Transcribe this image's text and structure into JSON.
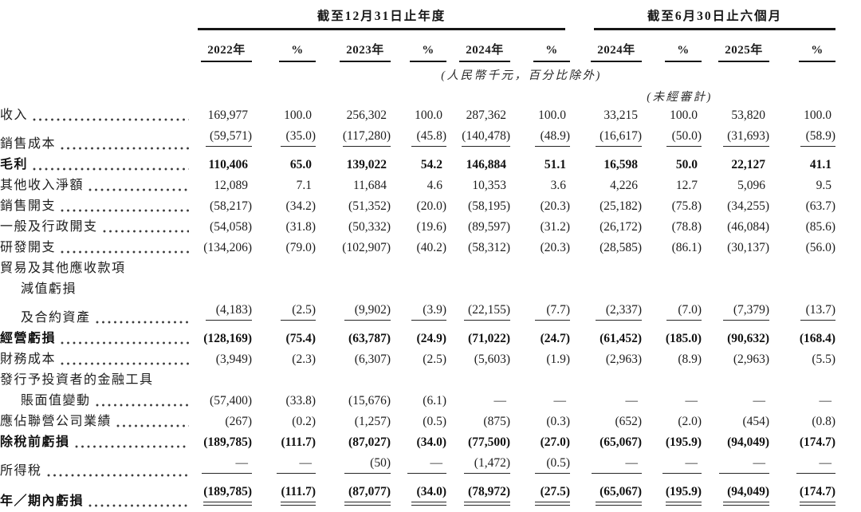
{
  "page": {
    "background": "#ffffff",
    "text_color": "#1d1d1d",
    "rule_color": "#161616"
  },
  "header": {
    "groups": [
      {
        "title": "截至12月31日止年度",
        "columns": [
          "2022年",
          "%",
          "2023年",
          "%",
          "2024年",
          "%"
        ]
      },
      {
        "title": "截至6月30日止六個月",
        "columns": [
          "2024年",
          "%",
          "2025年",
          "%"
        ]
      }
    ],
    "unit_note": "(人民幣千元，百分比除外)",
    "unaudited_note": "(未經審計)"
  },
  "rows": [
    {
      "lines": [
        {
          "text": "收入",
          "indent": false,
          "dots": true
        }
      ],
      "bold": false,
      "rule": false,
      "dbl": false,
      "values": [
        "169,977",
        "100.0",
        "256,302",
        "100.0",
        "287,362",
        "100.0",
        "33,215",
        "100.0",
        "53,820",
        "100.0"
      ]
    },
    {
      "lines": [
        {
          "text": "銷售成本",
          "indent": false,
          "dots": true
        }
      ],
      "bold": false,
      "rule": true,
      "dbl": false,
      "values": [
        "(59,571)",
        "(35.0)",
        "(117,280)",
        "(45.8)",
        "(140,478)",
        "(48.9)",
        "(16,617)",
        "(50.0)",
        "(31,693)",
        "(58.9)"
      ]
    },
    {
      "lines": [
        {
          "text": "毛利",
          "indent": false,
          "dots": true
        }
      ],
      "bold": true,
      "rule": false,
      "dbl": false,
      "values": [
        "110,406",
        "65.0",
        "139,022",
        "54.2",
        "146,884",
        "51.1",
        "16,598",
        "50.0",
        "22,127",
        "41.1"
      ]
    },
    {
      "lines": [
        {
          "text": "其他收入淨額",
          "indent": false,
          "dots": true
        }
      ],
      "bold": false,
      "rule": false,
      "dbl": false,
      "values": [
        "12,089",
        "7.1",
        "11,684",
        "4.6",
        "10,353",
        "3.6",
        "4,226",
        "12.7",
        "5,096",
        "9.5"
      ]
    },
    {
      "lines": [
        {
          "text": "銷售開支",
          "indent": false,
          "dots": true
        }
      ],
      "bold": false,
      "rule": false,
      "dbl": false,
      "values": [
        "(58,217)",
        "(34.2)",
        "(51,352)",
        "(20.0)",
        "(58,195)",
        "(20.3)",
        "(25,182)",
        "(75.8)",
        "(34,255)",
        "(63.7)"
      ]
    },
    {
      "lines": [
        {
          "text": "一般及行政開支",
          "indent": false,
          "dots": true
        }
      ],
      "bold": false,
      "rule": false,
      "dbl": false,
      "values": [
        "(54,058)",
        "(31.8)",
        "(50,332)",
        "(19.6)",
        "(89,597)",
        "(31.2)",
        "(26,172)",
        "(78.8)",
        "(46,084)",
        "(85.6)"
      ]
    },
    {
      "lines": [
        {
          "text": "研發開支",
          "indent": false,
          "dots": true
        }
      ],
      "bold": false,
      "rule": false,
      "dbl": false,
      "values": [
        "(134,206)",
        "(79.0)",
        "(102,907)",
        "(40.2)",
        "(58,312)",
        "(20.3)",
        "(28,585)",
        "(86.1)",
        "(30,137)",
        "(56.0)"
      ]
    },
    {
      "lines": [
        {
          "text": "貿易及其他應收款項",
          "indent": false,
          "dots": false
        },
        {
          "text": "減值虧損",
          "indent": true,
          "dots": false
        },
        {
          "text": "及合約資產",
          "indent": true,
          "dots": true
        }
      ],
      "bold": false,
      "rule": true,
      "dbl": false,
      "values": [
        "(4,183)",
        "(2.5)",
        "(9,902)",
        "(3.9)",
        "(22,155)",
        "(7.7)",
        "(2,337)",
        "(7.0)",
        "(7,379)",
        "(13.7)"
      ]
    },
    {
      "lines": [
        {
          "text": "經營虧損",
          "indent": false,
          "dots": true
        }
      ],
      "bold": true,
      "rule": false,
      "dbl": false,
      "values": [
        "(128,169)",
        "(75.4)",
        "(63,787)",
        "(24.9)",
        "(71,022)",
        "(24.7)",
        "(61,452)",
        "(185.0)",
        "(90,632)",
        "(168.4)"
      ]
    },
    {
      "lines": [
        {
          "text": "財務成本",
          "indent": false,
          "dots": true
        }
      ],
      "bold": false,
      "rule": false,
      "dbl": false,
      "values": [
        "(3,949)",
        "(2.3)",
        "(6,307)",
        "(2.5)",
        "(5,603)",
        "(1.9)",
        "(2,963)",
        "(8.9)",
        "(2,963)",
        "(5.5)"
      ]
    },
    {
      "lines": [
        {
          "text": "發行予投資者的金融工具",
          "indent": false,
          "dots": false
        },
        {
          "text": "賬面值變動",
          "indent": true,
          "dots": true
        }
      ],
      "bold": false,
      "rule": false,
      "dbl": false,
      "values": [
        "(57,400)",
        "(33.8)",
        "(15,676)",
        "(6.1)",
        "—",
        "—",
        "—",
        "—",
        "—",
        "—"
      ]
    },
    {
      "lines": [
        {
          "text": "應佔聯營公司業績",
          "indent": false,
          "dots": true
        }
      ],
      "bold": false,
      "rule": false,
      "dbl": false,
      "values": [
        "(267)",
        "(0.2)",
        "(1,257)",
        "(0.5)",
        "(875)",
        "(0.3)",
        "(652)",
        "(2.0)",
        "(454)",
        "(0.8)"
      ]
    },
    {
      "lines": [
        {
          "text": "除稅前虧損",
          "indent": false,
          "dots": true
        }
      ],
      "bold": true,
      "rule": false,
      "dbl": false,
      "values": [
        "(189,785)",
        "(111.7)",
        "(87,027)",
        "(34.0)",
        "(77,500)",
        "(27.0)",
        "(65,067)",
        "(195.9)",
        "(94,049)",
        "(174.7)"
      ]
    },
    {
      "lines": [
        {
          "text": "所得稅",
          "indent": false,
          "dots": true
        }
      ],
      "bold": false,
      "rule": true,
      "dbl": false,
      "values": [
        "—",
        "—",
        "(50)",
        "—",
        "(1,472)",
        "(0.5)",
        "—",
        "—",
        "—",
        "—"
      ]
    },
    {
      "lines": [
        {
          "text": "年／期內虧損",
          "indent": false,
          "dots": true
        }
      ],
      "bold": true,
      "rule": false,
      "dbl": true,
      "values": [
        "(189,785)",
        "(111.7)",
        "(87,077)",
        "(34.0)",
        "(78,972)",
        "(27.5)",
        "(65,067)",
        "(195.9)",
        "(94,049)",
        "(174.7)"
      ]
    }
  ]
}
